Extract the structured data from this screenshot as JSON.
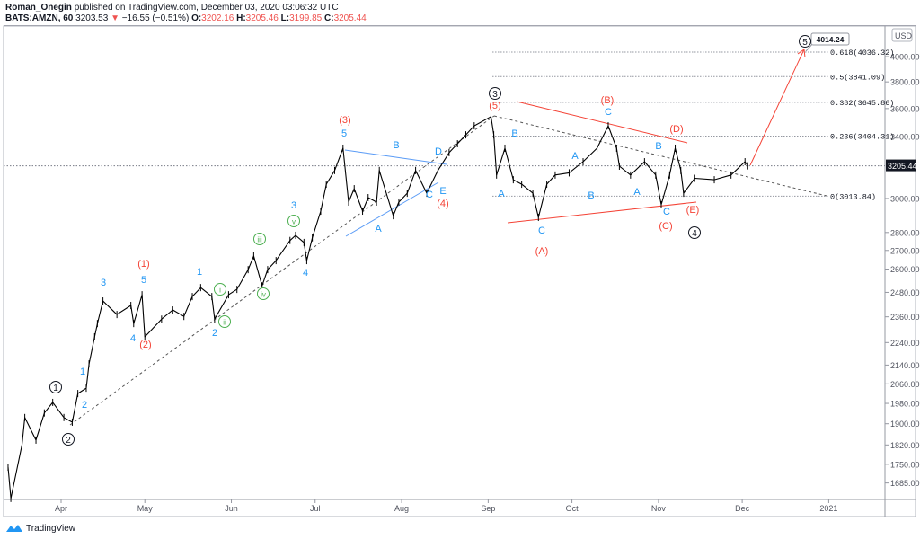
{
  "header": {
    "author": "Roman_Onegin",
    "published": "published on TradingView.com, December 03, 2020 03:06:32 UTC",
    "symbol": "BATS:AMZN, 60",
    "last": "3203.53",
    "change": "−16.55 (−0.51%)",
    "o_label": "O:",
    "o": "3202.16",
    "h_label": "H:",
    "h": "3205.46",
    "l_label": "L:",
    "l": "3199.85",
    "c_label": "C:",
    "c": "3205.44"
  },
  "footer": {
    "brand": "TradingView"
  },
  "colors": {
    "up_wave": "#2196f3",
    "red_wave": "#f44336",
    "minor_wave": "#4caf50",
    "price": "#000000",
    "fib": "#9598a1"
  },
  "chart_data": {
    "type": "line",
    "scale": "log",
    "currency": "USD",
    "ylim": [
      1620,
      4120
    ],
    "xlim": [
      "2020-03-13",
      "2021-01-12"
    ],
    "y_ticks": [
      "4000.00",
      "3800.00",
      "3600.00",
      "3400.00",
      "3000.00",
      "2800.00",
      "2700.00",
      "2600.00",
      "2480.00",
      "2360.00",
      "2240.00",
      "2140.00",
      "2060.00",
      "1980.00",
      "1900.00",
      "1820.00",
      "1750.00",
      "1685.00"
    ],
    "x_ticks": [
      {
        "label": "Apr",
        "date": "2020-04-01"
      },
      {
        "label": "May",
        "date": "2020-05-01"
      },
      {
        "label": "Jun",
        "date": "2020-06-01"
      },
      {
        "label": "Jul",
        "date": "2020-07-01"
      },
      {
        "label": "Aug",
        "date": "2020-08-01"
      },
      {
        "label": "Sep",
        "date": "2020-09-01"
      },
      {
        "label": "Oct",
        "date": "2020-10-01"
      },
      {
        "label": "Nov",
        "date": "2020-11-01"
      },
      {
        "label": "Dec",
        "date": "2020-12-01"
      },
      {
        "label": "2021",
        "date": "2021-01-01"
      }
    ],
    "current_price": "3205.44",
    "target_callout": "4014.24",
    "fib_levels": [
      {
        "label": "0.618(4036.32)",
        "price": 4036.32
      },
      {
        "label": "0.5(3841.09)",
        "price": 3841.09
      },
      {
        "label": "0.382(3645.86)",
        "price": 3645.86
      },
      {
        "label": "0.236(3404.31)",
        "price": 3404.31
      },
      {
        "label": "0(3013.84)",
        "price": 3013.84
      }
    ],
    "series": [
      {
        "points": [
          [
            "2020-03-13",
            1740
          ],
          [
            "2020-03-14",
            1633
          ],
          [
            "2020-03-18",
            1821
          ],
          [
            "2020-03-19",
            1924
          ],
          [
            "2020-03-23",
            1838
          ],
          [
            "2020-03-26",
            1942
          ],
          [
            "2020-03-29",
            1984
          ],
          [
            "2020-04-02",
            1924
          ],
          [
            "2020-04-05",
            1906
          ],
          [
            "2020-04-07",
            2020
          ],
          [
            "2020-04-10",
            2042
          ],
          [
            "2020-04-11",
            2145
          ],
          [
            "2020-04-13",
            2266
          ],
          [
            "2020-04-14",
            2328
          ],
          [
            "2020-04-16",
            2437
          ],
          [
            "2020-04-21",
            2371
          ],
          [
            "2020-04-26",
            2415
          ],
          [
            "2020-04-27",
            2328
          ],
          [
            "2020-04-30",
            2468
          ],
          [
            "2020-05-01",
            2266
          ],
          [
            "2020-05-07",
            2349
          ],
          [
            "2020-05-11",
            2393
          ],
          [
            "2020-05-15",
            2362
          ],
          [
            "2020-05-18",
            2459
          ],
          [
            "2020-05-21",
            2504
          ],
          [
            "2020-05-25",
            2459
          ],
          [
            "2020-05-26",
            2349
          ],
          [
            "2020-05-31",
            2468
          ],
          [
            "2020-06-03",
            2495
          ],
          [
            "2020-06-07",
            2597
          ],
          [
            "2020-06-09",
            2670
          ],
          [
            "2020-06-12",
            2513
          ],
          [
            "2020-06-14",
            2597
          ],
          [
            "2020-06-17",
            2645
          ],
          [
            "2020-06-22",
            2755
          ],
          [
            "2020-06-24",
            2784
          ],
          [
            "2020-06-27",
            2744
          ],
          [
            "2020-06-28",
            2645
          ],
          [
            "2020-06-30",
            2770
          ],
          [
            "2020-07-03",
            2924
          ],
          [
            "2020-07-05",
            3088
          ],
          [
            "2020-07-08",
            3175
          ],
          [
            "2020-07-11",
            3322
          ],
          [
            "2020-07-13",
            2978
          ],
          [
            "2020-07-15",
            3060
          ],
          [
            "2020-07-18",
            2924
          ],
          [
            "2020-07-20",
            3005
          ],
          [
            "2020-07-23",
            2978
          ],
          [
            "2020-07-24",
            3175
          ],
          [
            "2020-07-29",
            2897
          ],
          [
            "2020-07-31",
            2978
          ],
          [
            "2020-08-03",
            3032
          ],
          [
            "2020-08-06",
            3175
          ],
          [
            "2020-08-10",
            3032
          ],
          [
            "2020-08-14",
            3175
          ],
          [
            "2020-08-18",
            3292
          ],
          [
            "2020-08-21",
            3352
          ],
          [
            "2020-08-24",
            3413
          ],
          [
            "2020-08-27",
            3476
          ],
          [
            "2020-09-02",
            3542
          ],
          [
            "2020-09-03",
            3413
          ],
          [
            "2020-09-04",
            3146
          ],
          [
            "2020-09-07",
            3322
          ],
          [
            "2020-09-10",
            3116
          ],
          [
            "2020-09-13",
            3088
          ],
          [
            "2020-09-17",
            3032
          ],
          [
            "2020-09-19",
            2887
          ],
          [
            "2020-09-22",
            3088
          ],
          [
            "2020-09-25",
            3146
          ],
          [
            "2020-09-30",
            3160
          ],
          [
            "2020-10-05",
            3232
          ],
          [
            "2020-10-10",
            3322
          ],
          [
            "2020-10-14",
            3476
          ],
          [
            "2020-10-17",
            3322
          ],
          [
            "2020-10-18",
            3203
          ],
          [
            "2020-10-22",
            3146
          ],
          [
            "2020-10-27",
            3232
          ],
          [
            "2020-10-31",
            3146
          ],
          [
            "2020-11-02",
            2962
          ],
          [
            "2020-11-05",
            3146
          ],
          [
            "2020-11-07",
            3322
          ],
          [
            "2020-11-09",
            3175
          ],
          [
            "2020-11-10",
            3032
          ],
          [
            "2020-11-14",
            3125
          ],
          [
            "2020-11-21",
            3116
          ],
          [
            "2020-11-27",
            3146
          ],
          [
            "2020-12-02",
            3232
          ],
          [
            "2020-12-03",
            3205
          ]
        ]
      }
    ],
    "wave_labels": {
      "primary": [
        "1",
        "2",
        "3",
        "4",
        "5"
      ],
      "intermediate": [
        "(1)",
        "(2)",
        "(3)",
        "(4)",
        "(5)",
        "(A)",
        "(B)",
        "(C)",
        "(D)",
        "(E)"
      ],
      "minor": [
        "3",
        "5",
        "4",
        "1",
        "2",
        "1",
        "2",
        "4",
        "3",
        "5",
        "B",
        "A",
        "C",
        "D",
        "E",
        "B",
        "A",
        "C",
        "A",
        "B",
        "C",
        "B",
        "A",
        "C"
      ],
      "minute": [
        "i",
        "ii",
        "iii",
        "iv",
        "v"
      ]
    }
  }
}
